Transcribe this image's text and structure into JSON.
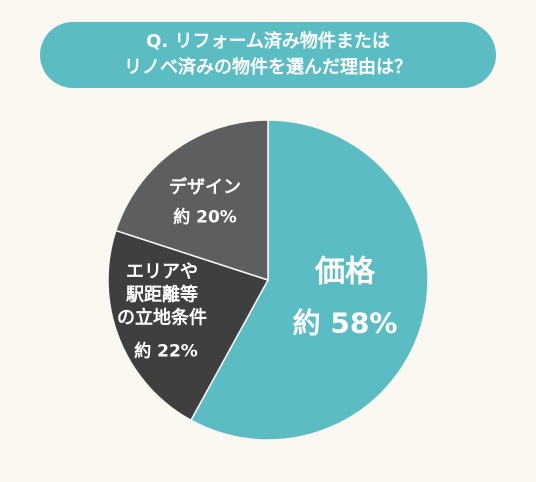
{
  "chart_data": {
    "type": "pie",
    "title": "Q. リフォーム済み物件または\nリノベ済みの物件を選んだ理由は？",
    "categories": [
      "価格",
      "エリアや\n駅距離等\nの立地条件",
      "デザイン"
    ],
    "values": [
      58,
      22,
      20
    ],
    "value_labels": [
      "約 58%",
      "約 22%",
      "約 20%"
    ],
    "colors": [
      "#5bbcc4",
      "#3f3f3f",
      "#5e5e5e"
    ]
  }
}
